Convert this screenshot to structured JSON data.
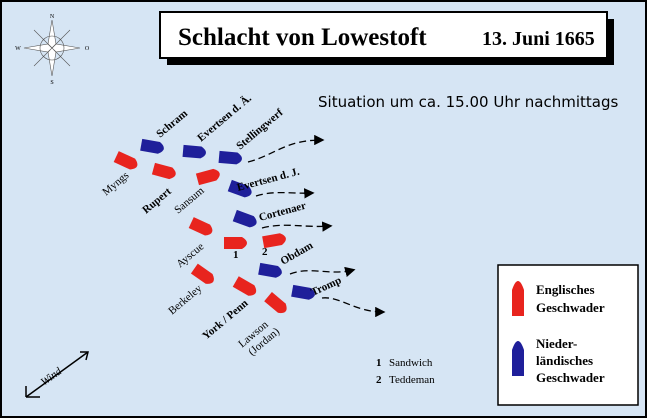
{
  "header": {
    "title": "Schlacht von Lowestoft",
    "date": "13. Juni 1665"
  },
  "subtitle": "Situation um ca. 15.00 Uhr nachmittags",
  "compass": {
    "n": "N",
    "w": "W",
    "o": "O",
    "s": "S"
  },
  "english": {
    "myngs": "Myngs",
    "rupert": "Rupert",
    "sansum": "Sansum",
    "ayscue": "Ayscue",
    "berkeley": "Berkeley",
    "york": "York / Penn",
    "lawson": [
      "Lawson",
      "(Jordan)"
    ]
  },
  "dutch": {
    "schram": "Schram",
    "evertsen_a": "Evertsen d. Ä.",
    "stellingwerf": "Stellingwerf",
    "evertsen_j": "Evertsen d. J.",
    "cortenaer": "Cortenaer",
    "obdam": "Obdam",
    "tromp": "Tromp"
  },
  "markers": [
    "1",
    "2"
  ],
  "notes": [
    {
      "num": "1",
      "name": "Sandwich"
    },
    {
      "num": "2",
      "name": "Teddeman"
    }
  ],
  "legend": {
    "english": [
      "Englisches",
      "Geschwader"
    ],
    "dutch": [
      "Nieder-",
      "ländisches",
      "Geschwader"
    ]
  },
  "wind": "Wind"
}
